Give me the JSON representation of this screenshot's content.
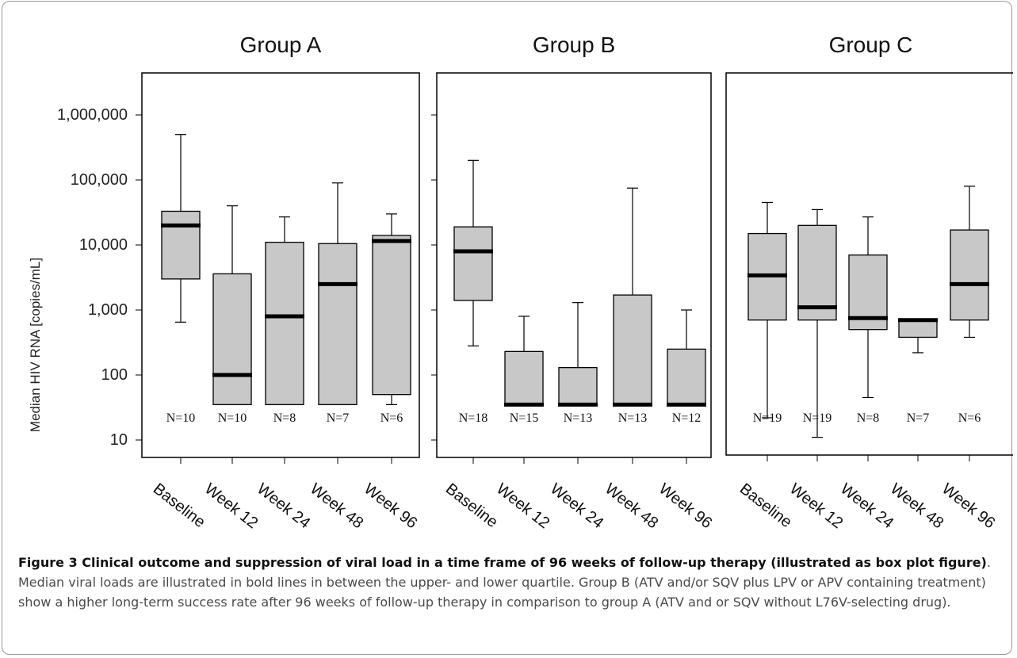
{
  "chart_data": {
    "type": "box",
    "ylabel": "Median HIV RNA [copies/mL]",
    "y_scale": "log",
    "ylim": [
      5,
      1000000
    ],
    "y_ticks": [
      10,
      100,
      1000,
      10000,
      100000,
      1000000
    ],
    "y_tick_labels": [
      "10",
      "100",
      "1,000",
      "10,000",
      "100,000",
      "1,000,000"
    ],
    "categories": [
      "Baseline",
      "Week 12",
      "Week 24",
      "Week 48",
      "Week 96"
    ],
    "panels": [
      {
        "title": "Group A",
        "n_labels": [
          "N=10",
          "N=10",
          "N=8",
          "N=7",
          "N=6"
        ],
        "boxes": [
          {
            "min": 650,
            "q1": 3000,
            "median": 20000,
            "q3": 33000,
            "max": 500000
          },
          {
            "min": 35,
            "q1": 35,
            "median": 100,
            "q3": 3600,
            "max": 40000
          },
          {
            "min": 35,
            "q1": 35,
            "median": 800,
            "q3": 11000,
            "max": 27000
          },
          {
            "min": 35,
            "q1": 35,
            "median": 2500,
            "q3": 10500,
            "max": 90000
          },
          {
            "min": 35,
            "q1": 50,
            "median": 11500,
            "q3": 14000,
            "max": 30000
          }
        ]
      },
      {
        "title": "Group B",
        "n_labels": [
          "N=18",
          "N=15",
          "N=13",
          "N=13",
          "N=12"
        ],
        "boxes": [
          {
            "min": 280,
            "q1": 1400,
            "median": 8000,
            "q3": 19000,
            "max": 200000
          },
          {
            "min": 35,
            "q1": 35,
            "median": 35,
            "q3": 230,
            "max": 800
          },
          {
            "min": 35,
            "q1": 35,
            "median": 35,
            "q3": 130,
            "max": 1300
          },
          {
            "min": 35,
            "q1": 35,
            "median": 35,
            "q3": 1700,
            "max": 75000
          },
          {
            "min": 35,
            "q1": 35,
            "median": 35,
            "q3": 250,
            "max": 1000
          }
        ]
      },
      {
        "title": "Group C",
        "n_labels": [
          "N=19",
          "N=19",
          "N=8",
          "N=7",
          "N=6"
        ],
        "boxes": [
          {
            "min": 22,
            "q1": 700,
            "median": 3400,
            "q3": 15000,
            "max": 45000
          },
          {
            "min": 11,
            "q1": 700,
            "median": 1100,
            "q3": 20000,
            "max": 35000
          },
          {
            "min": 45,
            "q1": 500,
            "median": 750,
            "q3": 7000,
            "max": 27000
          },
          {
            "min": 220,
            "q1": 380,
            "median": 700,
            "q3": 700,
            "max": 700
          },
          {
            "min": 380,
            "q1": 700,
            "median": 2500,
            "q3": 17000,
            "max": 80000
          }
        ]
      }
    ]
  },
  "caption": {
    "bold": "Figure 3 Clinical outcome and suppression of viral load in a time frame of 96 weeks of follow-up therapy (illustrated as box plot figure)",
    "text": ". Median viral loads are illustrated in bold lines in between the upper- and lower quartile. Group B (ATV and/or SQV plus LPV or APV containing treatment) show a higher long-term success rate after 96 weeks of follow-up therapy in comparison to group A (ATV and or SQV without L76V-selecting drug)."
  }
}
